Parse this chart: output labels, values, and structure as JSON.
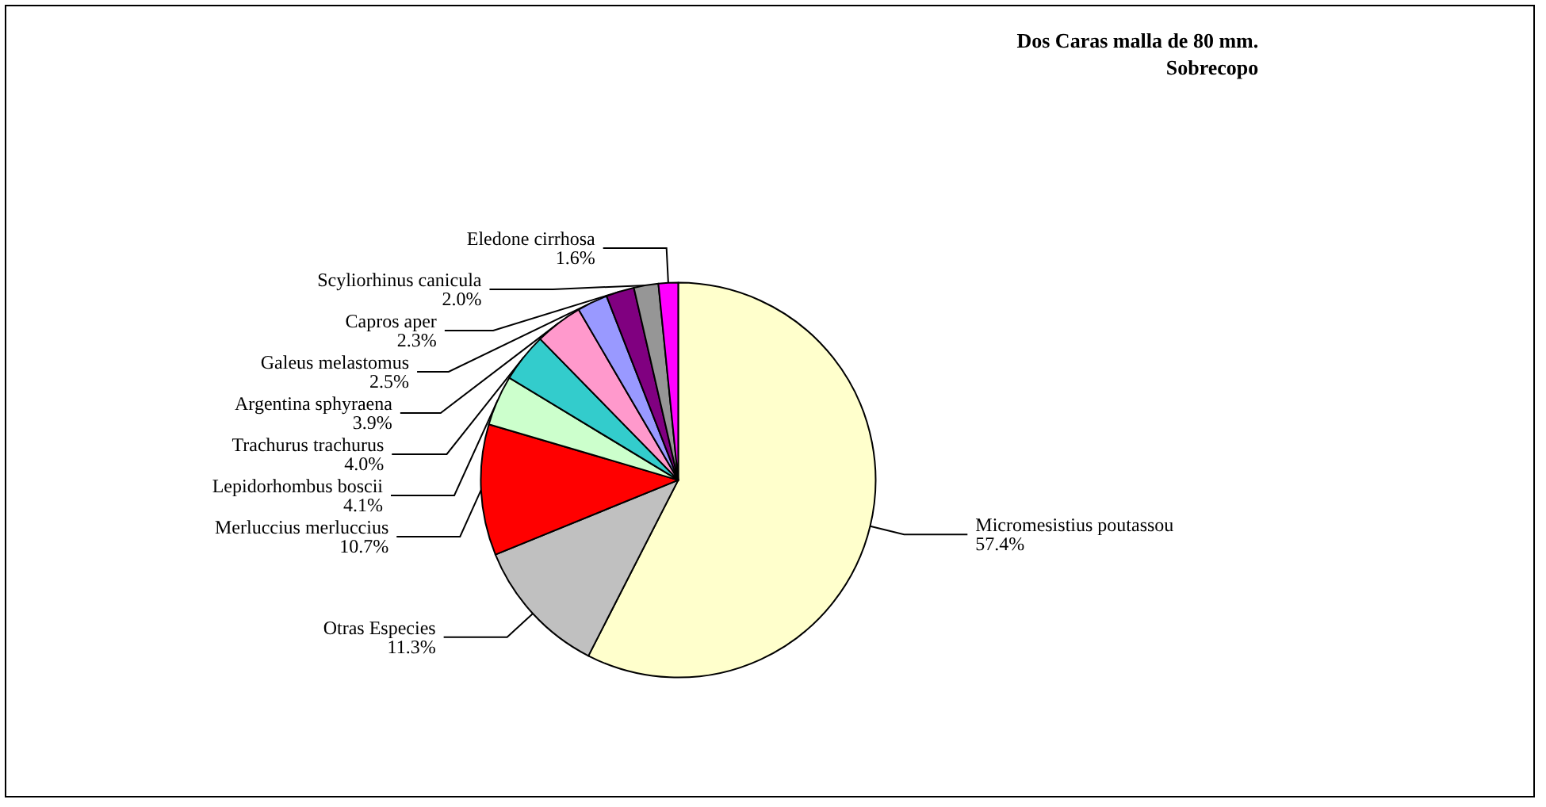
{
  "chart_data": {
    "type": "pie",
    "title": "Dos Caras malla de 80 mm.",
    "subtitle": "Sobrecopo",
    "categories": [
      "Micromesistius poutassou",
      "Otras Especies",
      "Merluccius merluccius",
      "Lepidorhombus boscii",
      "Trachurus trachurus",
      "Argentina sphyraena",
      "Galeus melastomus",
      "Capros aper",
      "Scyliorhinus canicula",
      "Eledone cirrhosa"
    ],
    "values": [
      57.4,
      11.3,
      10.7,
      4.1,
      4.0,
      3.9,
      2.5,
      2.3,
      2.0,
      1.6
    ],
    "value_labels": [
      "57.4%",
      "11.3%",
      "10.7%",
      "4.1%",
      "4.0%",
      "3.9%",
      "2.5%",
      "2.3%",
      "2.0%",
      "1.6%"
    ],
    "colors": [
      "#ffffcc",
      "#c0c0c0",
      "#ff0000",
      "#ccffcc",
      "#33cccc",
      "#ff99cc",
      "#9999ff",
      "#800080",
      "#969696",
      "#ff00ff"
    ],
    "legend": false
  }
}
